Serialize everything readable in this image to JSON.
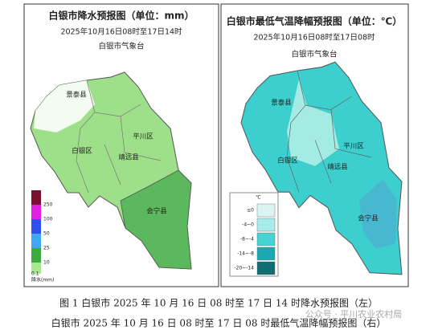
{
  "left_panel": {
    "title": "白银市降水预报图（单位：mm）",
    "time_range": "2025年10月16日08时至17日14时",
    "issuer": "白银市气象台",
    "districts": [
      "景泰县",
      "白银区",
      "平川区",
      "靖远县",
      "会宁县"
    ],
    "legend": {
      "labels": [
        "250",
        "100",
        "50",
        "25",
        "10",
        "0.1"
      ],
      "unit": "降水(mm)"
    }
  },
  "right_panel": {
    "title": "白银市最低气温降幅预报图（单位：℃）",
    "time_range": "2025年10月16日08时至17日08时",
    "issuer": "白银市气象台",
    "districts": [
      "景泰县",
      "白银区",
      "平川区",
      "靖远县",
      "会宁县"
    ],
    "legend": {
      "unit": "℃",
      "labels": [
        "≤0",
        "-4~0",
        "-8~-4",
        "-14~-8",
        "-20~-14"
      ]
    }
  },
  "captions": [
    "图 1 白银市 2025 年 10 月 16 日 08 时至 17 日 14 时降水预报图（左）",
    "白银市 2025 年 10 月 16 日 08 时至 17 日 08 时最低气温降幅预报图（右）"
  ],
  "watermark": "公众号 · 平川农业农村局"
}
